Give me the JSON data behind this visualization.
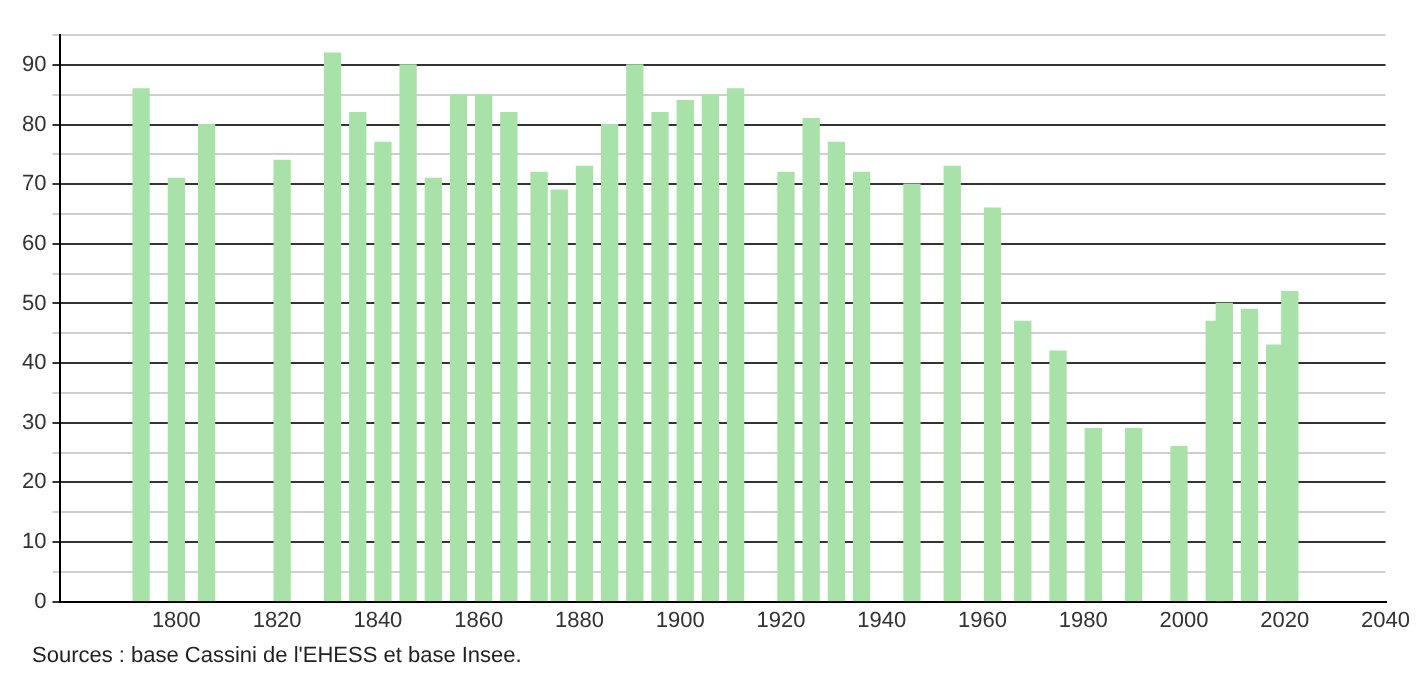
{
  "chart_data": {
    "type": "bar",
    "color": "#a8e2a8",
    "x": [
      1793,
      1800,
      1806,
      1821,
      1831,
      1836,
      1841,
      1846,
      1851,
      1856,
      1861,
      1866,
      1872,
      1876,
      1881,
      1886,
      1891,
      1896,
      1901,
      1906,
      1911,
      1921,
      1926,
      1931,
      1936,
      1946,
      1954,
      1962,
      1968,
      1975,
      1982,
      1990,
      1999,
      2006,
      2008,
      2013,
      2018,
      2021
    ],
    "values": [
      86,
      71,
      80,
      74,
      92,
      82,
      77,
      90,
      71,
      85,
      85,
      82,
      72,
      69,
      73,
      80,
      90,
      82,
      84,
      85,
      86,
      72,
      81,
      77,
      72,
      70,
      73,
      66,
      47,
      42,
      29,
      29,
      26,
      47,
      50,
      49,
      43,
      52
    ],
    "xlim": [
      1777,
      2040
    ],
    "xticks": [
      1800,
      1820,
      1840,
      1860,
      1880,
      1900,
      1920,
      1940,
      1960,
      1980,
      2000,
      2020,
      2040
    ],
    "ylim": [
      0,
      95
    ],
    "yticks": [
      0,
      {
        "value": 5,
        "label": null
      },
      10,
      {
        "value": 15,
        "label": null
      },
      20,
      {
        "value": 25,
        "label": null
      },
      30,
      {
        "value": 35,
        "label": null
      },
      40,
      {
        "value": 45,
        "label": null
      },
      50,
      {
        "value": 55,
        "label": null
      },
      60,
      {
        "value": 65,
        "label": null
      },
      70,
      {
        "value": 75,
        "label": null
      },
      80,
      {
        "value": 85,
        "label": null
      },
      90,
      {
        "value": 95,
        "label": null
      }
    ],
    "grid": "y",
    "annotations": [
      "Sources : base Cassini de l'EHESS et base Insee."
    ]
  }
}
